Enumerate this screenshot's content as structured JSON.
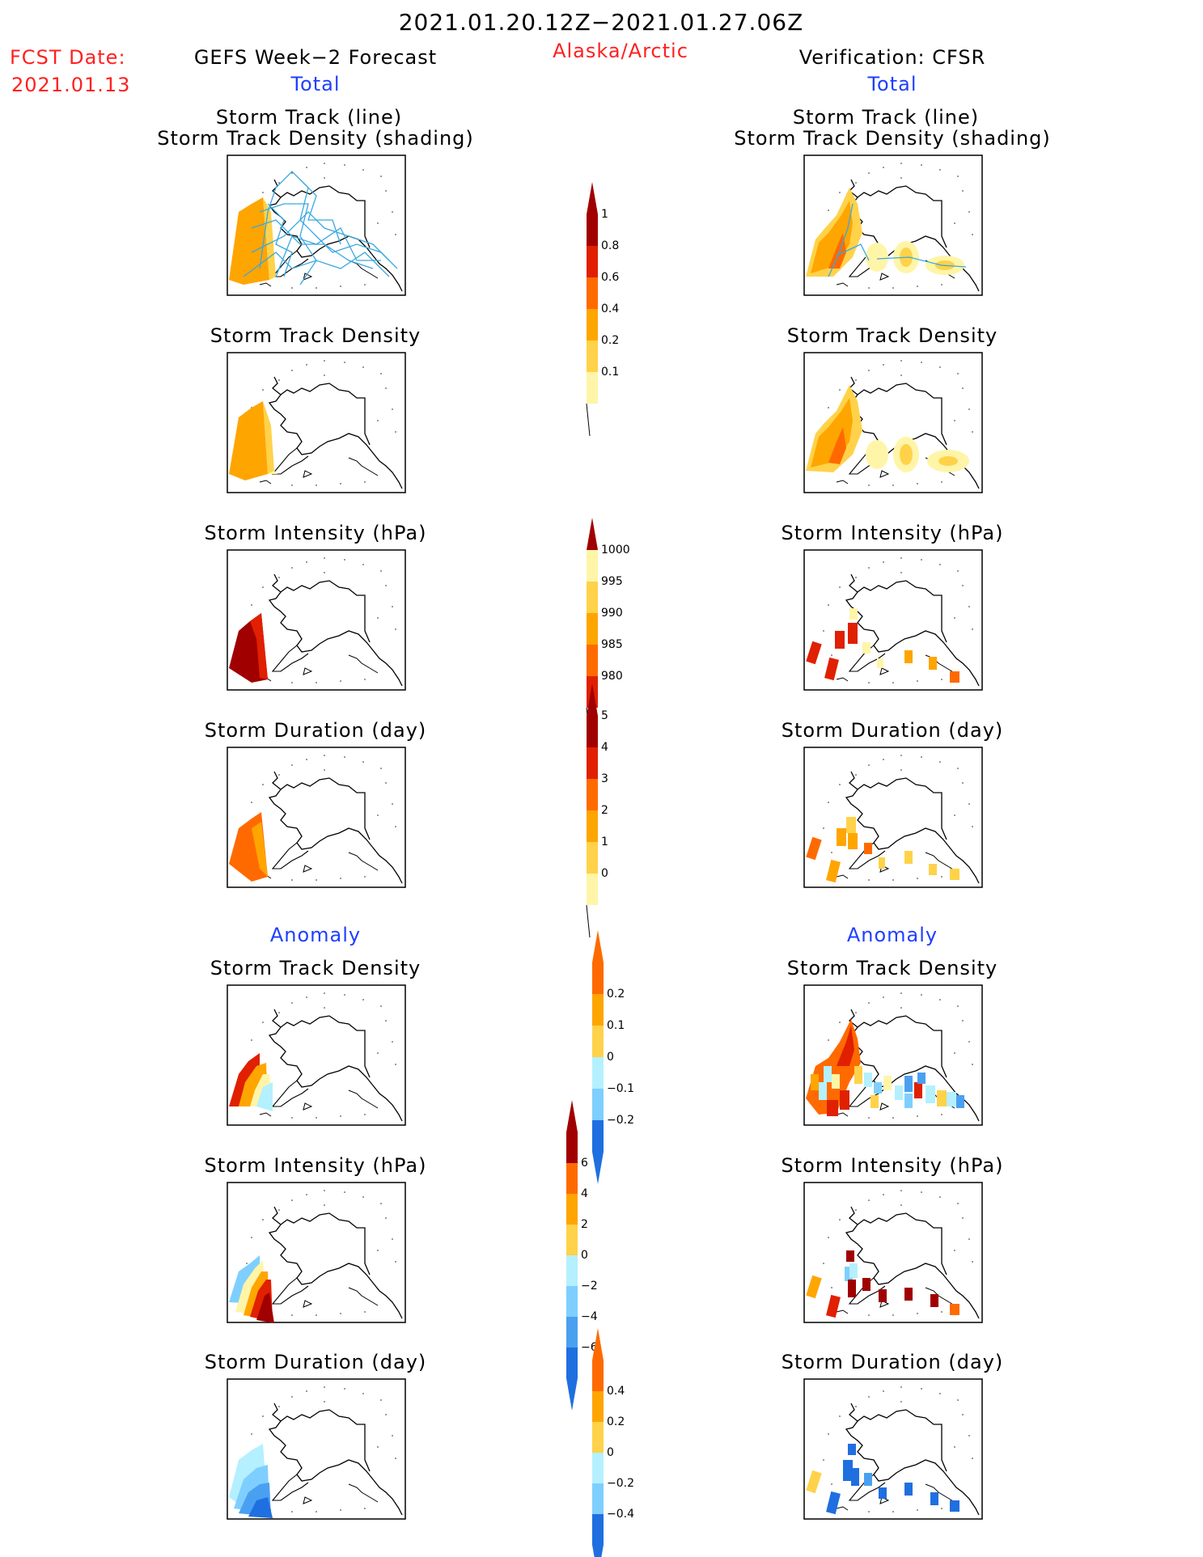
{
  "header": {
    "period": "2021.01.20.12Z−2021.01.27.06Z",
    "fcst_label": "FCST Date:",
    "fcst_date": "2021.01.13",
    "forecast_title": "GEFS Week−2 Forecast",
    "region": "Alaska/Arctic",
    "verification_title": "Verification: CFSR"
  },
  "sections": {
    "total": "Total",
    "anomaly": "Anomaly"
  },
  "panels": {
    "track_title_line1": "Storm Track (line)",
    "track_title_line2": "Storm Track Density (shading)",
    "density": "Storm Track Density",
    "intensity": "Storm Intensity (hPa)",
    "duration": "Storm Duration (day)"
  },
  "colorbars": {
    "density_total": [
      "1",
      "0.8",
      "0.6",
      "0.4",
      "0.2",
      "0.1"
    ],
    "intensity_total": [
      "1000",
      "995",
      "990",
      "985",
      "980"
    ],
    "duration_total": [
      "5",
      "4",
      "3",
      "2",
      "1",
      "0"
    ],
    "density_anomaly": [
      "0.2",
      "0.1",
      "0",
      "−0.1",
      "−0.2"
    ],
    "intensity_anomaly": [
      "6",
      "4",
      "2",
      "0",
      "−2",
      "−4",
      "−6"
    ],
    "duration_anomaly": [
      "0.4",
      "0.2",
      "0",
      "−0.2",
      "−0.4"
    ]
  },
  "colors": {
    "title_red": "#ff2020",
    "section_blue": "#1f3fff",
    "track_line": "#39a8e0",
    "warm": [
      "#fff5a8",
      "#ffd24a",
      "#ffa500",
      "#ff6a00",
      "#e02000",
      "#a00000"
    ],
    "cool": [
      "#b4f0ff",
      "#7ecfff",
      "#4aa0f0",
      "#1f6fe0",
      "#104fc0"
    ]
  }
}
